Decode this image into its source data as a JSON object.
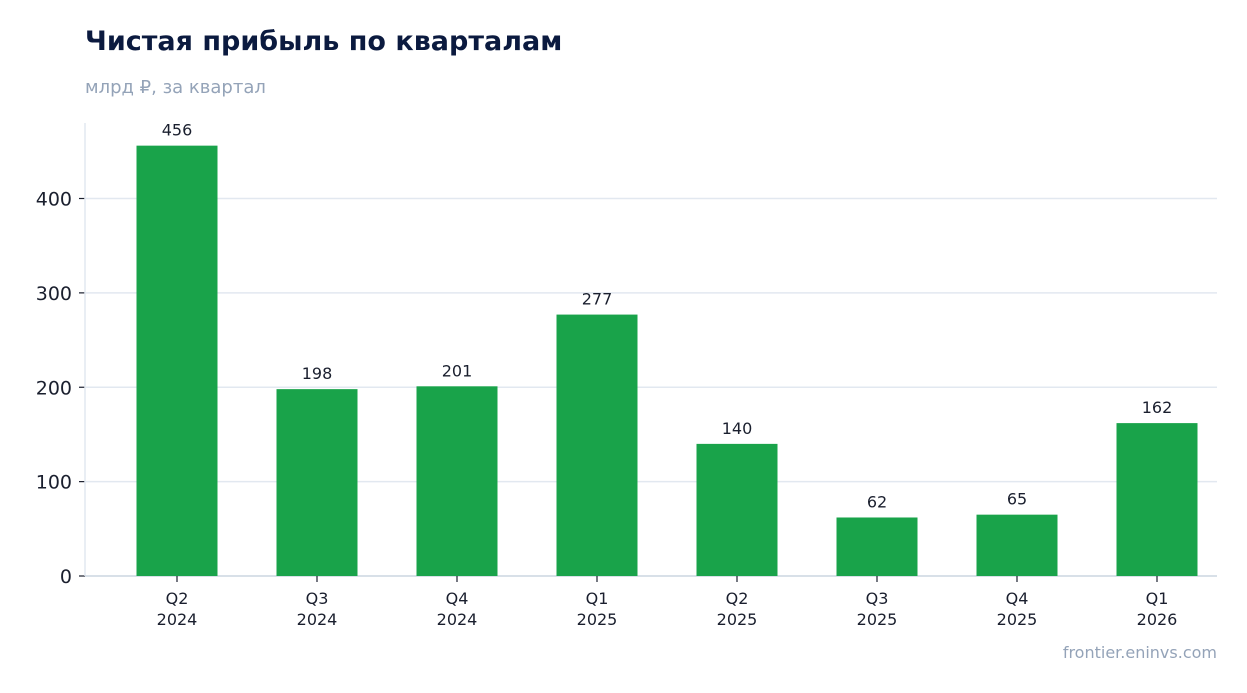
{
  "header": {
    "title": "Чистая прибыль по кварталам",
    "subtitle": "млрд ₽, за квартал"
  },
  "footer": {
    "source": "frontier.eninvs.com"
  },
  "colors": {
    "bar": "#19a34a",
    "grid": "#e2e8f0",
    "axis": "#cbd5e1",
    "title": "#0b1a3f",
    "muted": "#94a3b8"
  },
  "chart_data": {
    "type": "bar",
    "title": "Чистая прибыль по кварталам",
    "subtitle": "млрд ₽, за квартал",
    "categories": [
      [
        "Q2",
        "2024"
      ],
      [
        "Q3",
        "2024"
      ],
      [
        "Q4",
        "2024"
      ],
      [
        "Q1",
        "2025"
      ],
      [
        "Q2",
        "2025"
      ],
      [
        "Q3",
        "2025"
      ],
      [
        "Q4",
        "2025"
      ],
      [
        "Q1",
        "2026"
      ]
    ],
    "values": [
      456,
      198,
      201,
      277,
      140,
      62,
      65,
      162
    ],
    "value_labels": [
      "456",
      "198",
      "201",
      "277",
      "140",
      "62",
      "65",
      "162"
    ],
    "ylim": [
      0,
      480
    ],
    "yticks": [
      0,
      100,
      200,
      300,
      400
    ],
    "ytick_labels": [
      "0",
      "100",
      "200",
      "300",
      "400"
    ],
    "grid": true,
    "xlabel": "",
    "ylabel": ""
  }
}
